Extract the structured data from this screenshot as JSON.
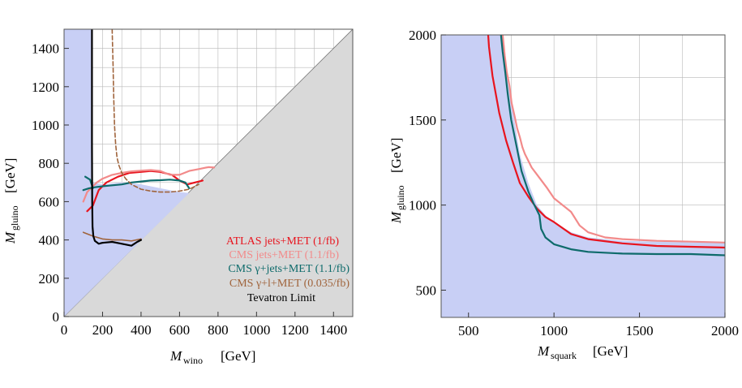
{
  "colors": {
    "allowed_fill": "#c8cff5",
    "excluded_fill": "#d9d9d9",
    "grid": "#b8b8b8",
    "frame": "#555555",
    "atlas": "#e8141e",
    "cms_jets": "#f28a8a",
    "cms_gamma_jets": "#0e6b6b",
    "cms_gamma_lepton": "#a0643c",
    "tevatron": "#000000"
  },
  "chart_data": [
    {
      "type": "line",
      "xlabel_main": "M",
      "xlabel_sub": "wino",
      "xlabel_unit": "[GeV]",
      "ylabel_main": "M",
      "ylabel_sub": "gluino",
      "ylabel_unit": "[GeV]",
      "xlim": [
        0,
        1500
      ],
      "ylim": [
        0,
        1500
      ],
      "xticks": [
        0,
        200,
        400,
        600,
        800,
        1000,
        1200,
        1400
      ],
      "yticks": [
        0,
        200,
        400,
        600,
        800,
        1000,
        1200,
        1400
      ],
      "xtick_labels": [
        "0",
        "200",
        "400",
        "600",
        "800",
        "1000",
        "1200",
        "1400"
      ],
      "ytick_labels": [
        "0",
        "200",
        "400",
        "600",
        "800",
        "1000",
        "1200",
        "1400"
      ],
      "grid": true,
      "legend_position": "bottom-right",
      "legend": [
        {
          "label": "ATLAS jets+MET (1/fb)",
          "color": "#e8141e"
        },
        {
          "label": "CMS jets+MET (1.1/fb)",
          "color": "#f28a8a"
        },
        {
          "label": "CMS γ+jets+MET (1.1/fb)",
          "color": "#0e6b6b"
        },
        {
          "label": "CMS γ+l+MET (0.035/fb)",
          "color": "#a0643c"
        },
        {
          "label": "Tevatron Limit",
          "color": "#000000"
        }
      ],
      "excluded_region": {
        "description": "gluino lighter than wino",
        "points": [
          [
            0,
            0
          ],
          [
            1500,
            1500
          ],
          [
            1500,
            0
          ]
        ]
      },
      "allowed_region": [
        [
          0,
          1500
        ],
        [
          145,
          1500
        ],
        [
          145,
          700
        ],
        [
          200,
          690
        ],
        [
          300,
          700
        ],
        [
          400,
          690
        ],
        [
          500,
          670
        ],
        [
          600,
          650
        ],
        [
          650,
          645
        ],
        [
          0,
          0
        ]
      ],
      "series": [
        {
          "name": "ATLAS jets+MET (1/fb)",
          "color": "#e8141e",
          "width": 2.2,
          "dash": "",
          "x": [
            120,
            150,
            180,
            220,
            280,
            340,
            400,
            450,
            500,
            560,
            600,
            640,
            680,
            720
          ],
          "y": [
            550,
            580,
            660,
            700,
            730,
            750,
            755,
            760,
            755,
            740,
            710,
            690,
            700,
            710
          ]
        },
        {
          "name": "CMS jets+MET (1.1/fb)",
          "color": "#f28a8a",
          "width": 2.2,
          "dash": "",
          "x": [
            100,
            120,
            150,
            170,
            200,
            250,
            300,
            350,
            400,
            450,
            500,
            550,
            600,
            650,
            700,
            750,
            780
          ],
          "y": [
            600,
            650,
            680,
            700,
            720,
            740,
            750,
            758,
            762,
            765,
            760,
            740,
            740,
            760,
            770,
            780,
            778
          ]
        },
        {
          "name": "CMS γ+jets+MET (1.1/fb)",
          "color": "#0e6b6b",
          "width": 2.2,
          "dash": "",
          "x": [
            100,
            130,
            160,
            200,
            250,
            300,
            350,
            400,
            450,
            500,
            550,
            600,
            630,
            650
          ],
          "y": [
            660,
            670,
            675,
            680,
            685,
            690,
            700,
            705,
            710,
            712,
            715,
            710,
            700,
            670
          ]
        },
        {
          "name": "CMS γ+jets+MET (1.1/fb) low segment",
          "color": "#0e6b6b",
          "width": 2.2,
          "dash": "",
          "x": [
            110,
            135,
            150
          ],
          "y": [
            730,
            715,
            670
          ]
        },
        {
          "name": "CMS γ+l+MET (0.035/fb)",
          "color": "#a0643c",
          "width": 1.6,
          "dash": "5,3",
          "x": [
            250,
            255,
            258,
            262,
            268,
            275,
            285,
            300,
            320,
            350,
            400,
            450,
            500,
            550,
            600,
            650,
            700
          ],
          "y": [
            1500,
            1300,
            1150,
            1000,
            900,
            830,
            790,
            750,
            720,
            690,
            665,
            655,
            650,
            650,
            655,
            665,
            690
          ]
        },
        {
          "name": "CMS γ+l+MET (0.035/fb) low",
          "color": "#a0643c",
          "width": 1.6,
          "dash": "",
          "x": [
            100,
            150,
            200,
            250,
            300,
            350,
            400
          ],
          "y": [
            440,
            420,
            405,
            400,
            400,
            395,
            405
          ]
        },
        {
          "name": "Tevatron Limit",
          "color": "#000000",
          "width": 2.2,
          "dash": "",
          "x": [
            145,
            145,
            146,
            148,
            152,
            160,
            180,
            200,
            250,
            300,
            350,
            380,
            400
          ],
          "y": [
            1500,
            900,
            600,
            470,
            420,
            395,
            380,
            385,
            390,
            380,
            370,
            390,
            400
          ]
        }
      ]
    },
    {
      "type": "line",
      "xlabel_main": "M",
      "xlabel_sub": "squark",
      "xlabel_unit": "[GeV]",
      "ylabel_main": "M",
      "ylabel_sub": "gluino",
      "ylabel_unit": "[GeV]",
      "xlim": [
        340,
        2000
      ],
      "ylim": [
        340,
        2000
      ],
      "xticks": [
        500,
        1000,
        1500,
        2000
      ],
      "yticks": [
        500,
        1000,
        1500,
        2000
      ],
      "xtick_labels": [
        "500",
        "1000",
        "1500",
        "2000"
      ],
      "ytick_labels": [
        "500",
        "1000",
        "1500",
        "2000"
      ],
      "grid": true,
      "allowed_region": [
        [
          340,
          2000
        ],
        [
          700,
          2000
        ],
        [
          720,
          1800
        ],
        [
          760,
          1550
        ],
        [
          800,
          1300
        ],
        [
          850,
          1130
        ],
        [
          900,
          1000
        ],
        [
          950,
          940
        ],
        [
          1000,
          900
        ],
        [
          1100,
          840
        ],
        [
          1200,
          810
        ],
        [
          1400,
          790
        ],
        [
          1600,
          785
        ],
        [
          1800,
          780
        ],
        [
          2000,
          780
        ],
        [
          2000,
          340
        ],
        [
          340,
          340
        ]
      ],
      "series": [
        {
          "name": "CMS jets+MET (1.1/fb)",
          "color": "#f28a8a",
          "width": 2.2,
          "dash": "",
          "x": [
            700,
            712,
            724,
            740,
            752,
            770,
            785,
            800,
            815,
            830,
            850,
            870,
            900,
            930,
            960,
            1000,
            1050,
            1100,
            1150,
            1200,
            1300,
            1400,
            1600,
            1800,
            2000
          ],
          "y": [
            2000,
            1880,
            1780,
            1700,
            1600,
            1520,
            1450,
            1400,
            1340,
            1300,
            1260,
            1220,
            1180,
            1140,
            1100,
            1040,
            1000,
            960,
            880,
            840,
            810,
            800,
            790,
            785,
            780
          ]
        },
        {
          "name": "ATLAS jets+MET (1/fb)",
          "color": "#e8141e",
          "width": 2.2,
          "dash": "",
          "x": [
            615,
            620,
            640,
            680,
            720,
            760,
            800,
            850,
            900,
            950,
            1000,
            1100,
            1200,
            1400,
            1600,
            1800,
            2000
          ],
          "y": [
            2000,
            1930,
            1760,
            1540,
            1380,
            1250,
            1130,
            1050,
            980,
            930,
            900,
            830,
            800,
            775,
            760,
            755,
            750
          ]
        },
        {
          "name": "CMS γ+jets+MET (1.1/fb)",
          "color": "#0e6b6b",
          "width": 2.2,
          "dash": "",
          "x": [
            690,
            700,
            715,
            730,
            750,
            780,
            810,
            850,
            880,
            900,
            915,
            925,
            950,
            1000,
            1100,
            1200,
            1400,
            1600,
            1800,
            2000
          ],
          "y": [
            2000,
            1900,
            1780,
            1650,
            1500,
            1350,
            1200,
            1080,
            1010,
            970,
            940,
            860,
            810,
            770,
            740,
            725,
            715,
            712,
            712,
            705
          ]
        }
      ]
    }
  ]
}
